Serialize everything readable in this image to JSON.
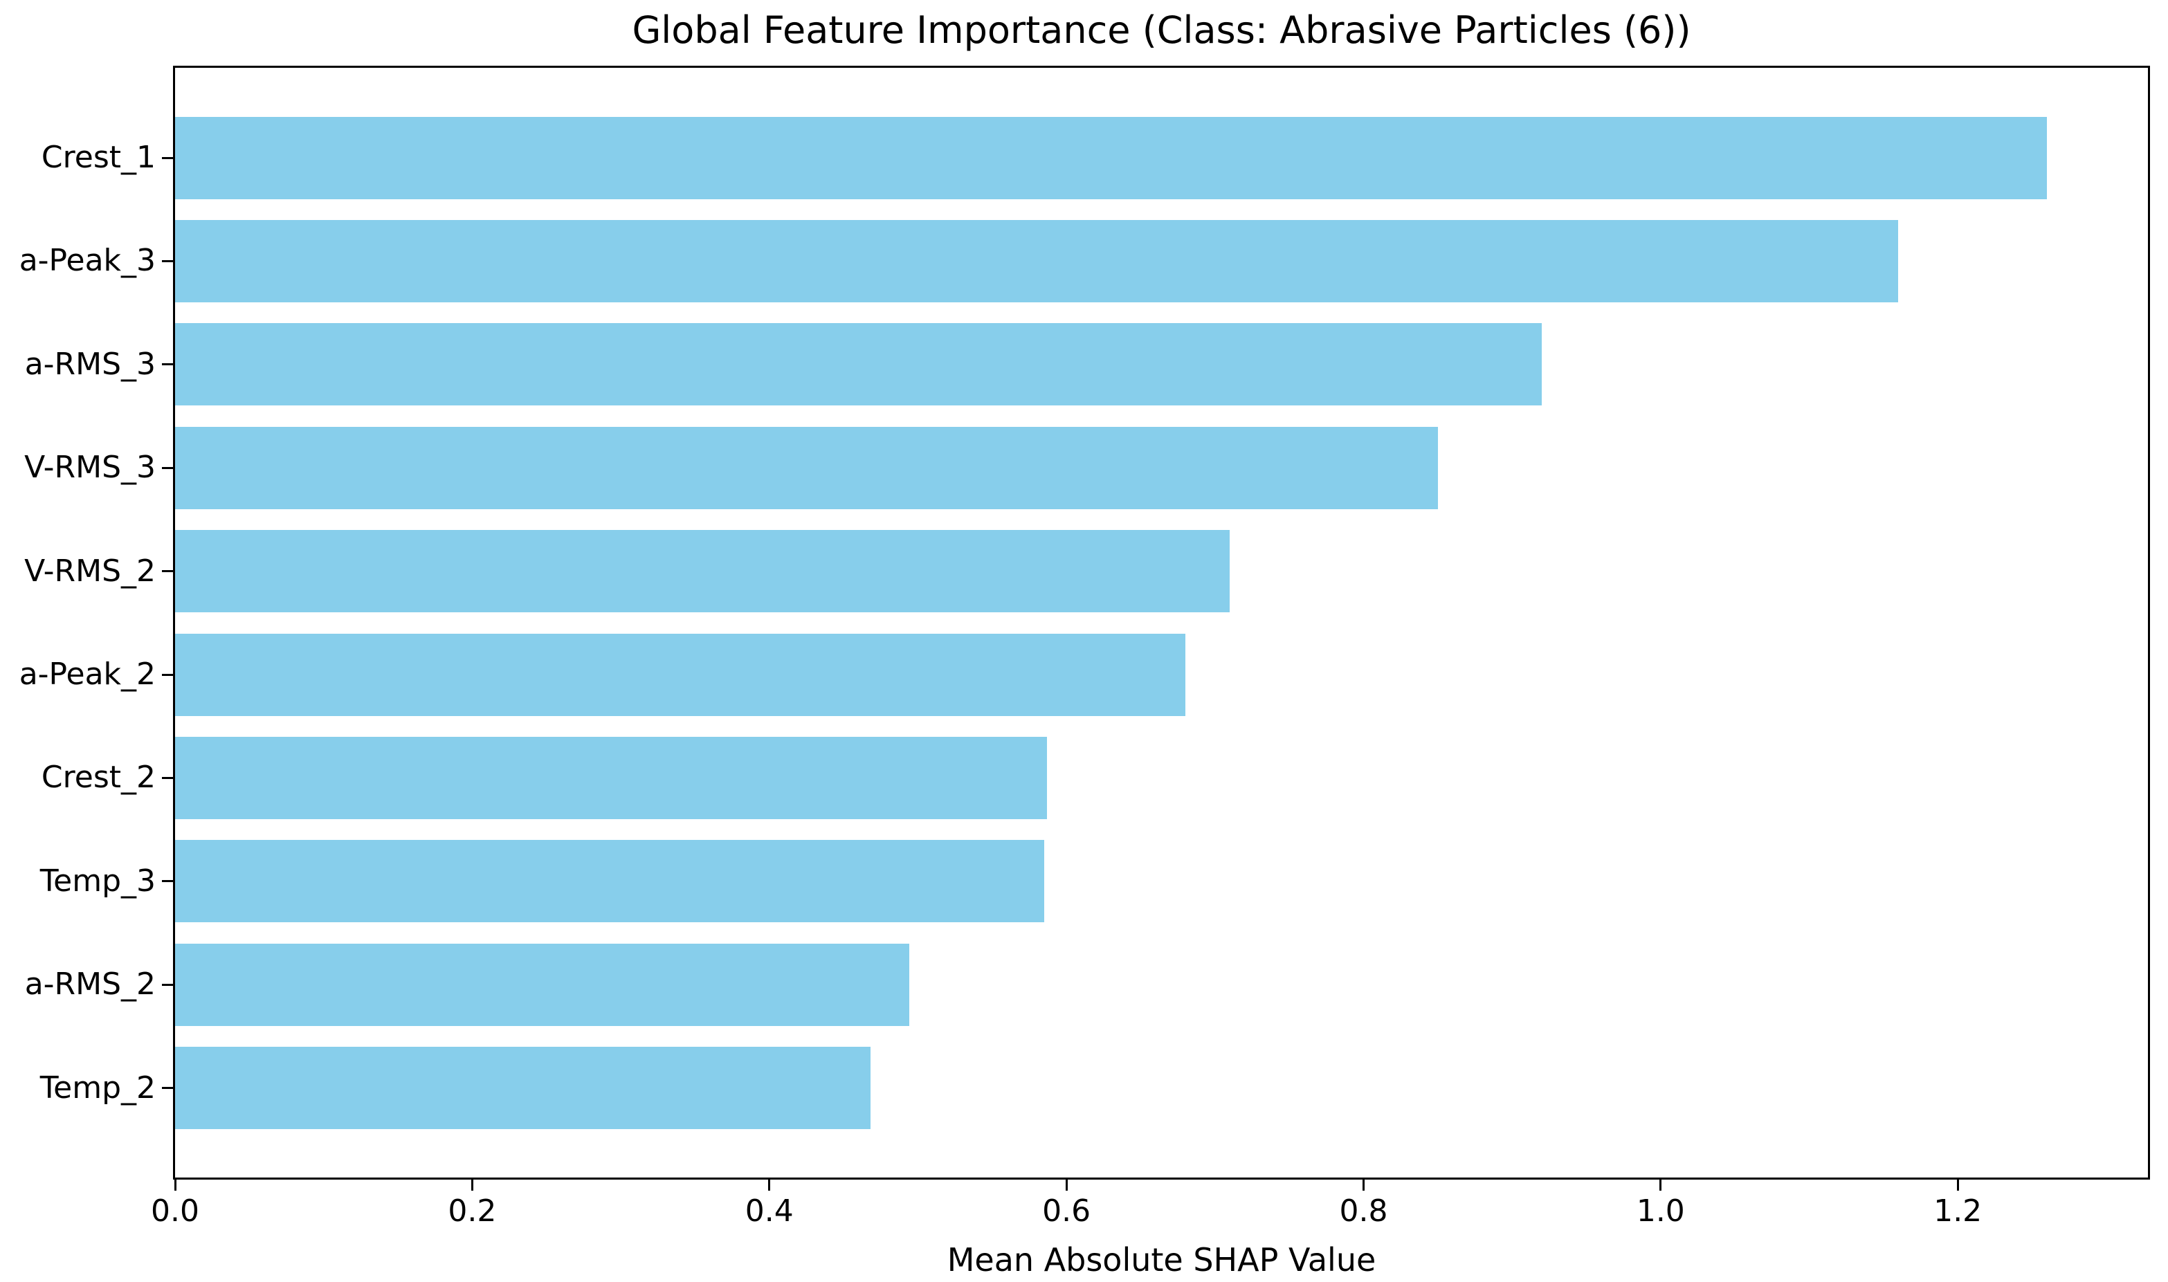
{
  "chart_data": {
    "type": "bar",
    "orientation": "horizontal",
    "title": "Global Feature Importance (Class: Abrasive Particles (6))",
    "xlabel": "Mean Absolute SHAP Value",
    "ylabel": "",
    "categories": [
      "Crest_1",
      "a-Peak_3",
      "a-RMS_3",
      "V-RMS_3",
      "V-RMS_2",
      "a-Peak_2",
      "Crest_2",
      "Temp_3",
      "a-RMS_2",
      "Temp_2"
    ],
    "values": [
      1.26,
      1.16,
      0.92,
      0.85,
      0.71,
      0.68,
      0.587,
      0.585,
      0.494,
      0.468
    ],
    "xlim": [
      0,
      1.328
    ],
    "xticks": [
      0.0,
      0.2,
      0.4,
      0.6,
      0.8,
      1.0,
      1.2
    ],
    "xtick_labels": [
      "0.0",
      "0.2",
      "0.4",
      "0.6",
      "0.8",
      "1.0",
      "1.2"
    ],
    "bar_color": "#87CEEB",
    "text_color": "#000000",
    "grid": false,
    "legend": null
  }
}
